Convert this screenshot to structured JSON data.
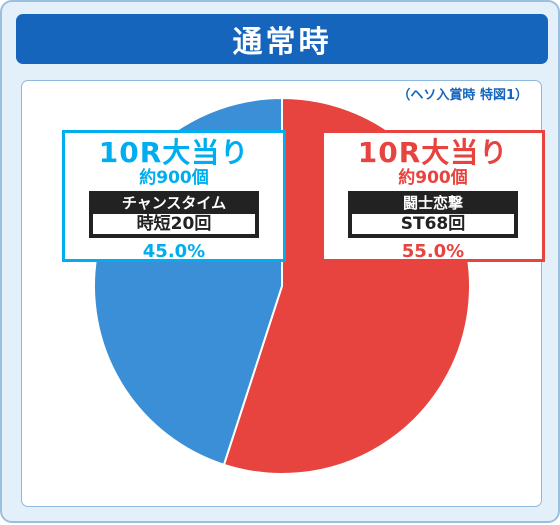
{
  "header": {
    "title": "通常時"
  },
  "note": "（ヘソ入賞時 特図1）",
  "colors": {
    "red": "#e8443f",
    "blue": "#3a8fd6",
    "cyan": "#00aeef"
  },
  "labels": {
    "left": {
      "title": "10R大当り",
      "sub": "約900個",
      "box_head": "チャンスタイム",
      "box_value": "時短20回",
      "percent": "45.0%"
    },
    "right": {
      "title": "10R大当り",
      "sub": "約900個",
      "box_head": "闘士恋撃",
      "box_value": "ST68回",
      "percent": "55.0%"
    }
  },
  "chart_data": {
    "type": "pie",
    "values": [
      55.0,
      45.0
    ],
    "labels": [
      "55.0%",
      "45.0%"
    ],
    "colors": [
      "#e8443f",
      "#3a8fd6"
    ],
    "start": "top",
    "direction": "clockwise"
  }
}
